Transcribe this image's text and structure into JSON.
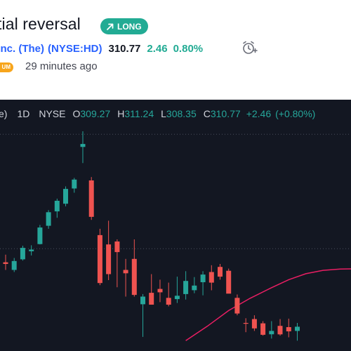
{
  "idea": {
    "title": "tial reversal",
    "badge": "LONG",
    "company": ", Inc. (The)",
    "ticker": "(NYSE:HD)",
    "price": "310.77",
    "change": "2.46",
    "change_pct": "0.80%",
    "pill_label": "UM",
    "time_ago": "29 minutes ago"
  },
  "chart_header": {
    "paren": "e)",
    "timeframe": "1D",
    "exchange": "NYSE",
    "open_label": "O",
    "open": "309.27",
    "high_label": "H",
    "high": "311.24",
    "low_label": "L",
    "low": "308.35",
    "close_label": "C",
    "close": "310.77",
    "change": "+2.46",
    "change_pct": "(+0.80%)"
  },
  "colors": {
    "up": "#26a69a",
    "down": "#ef5350",
    "moving_average": "#e91e63",
    "background": "#131722",
    "badge": "#22ab94",
    "link": "#2962ff"
  },
  "chart_data": {
    "type": "candlestick",
    "visible_price_range": [
      270.0,
      325.0
    ],
    "dotted_price_levels": [
      320.5,
      293.5
    ],
    "candles": [
      {
        "o": 290.3,
        "h": 292.1,
        "l": 288.5,
        "c": 289.9
      },
      {
        "o": 288.5,
        "h": 291.3,
        "l": 288.0,
        "c": 290.6
      },
      {
        "o": 291.0,
        "h": 294.2,
        "l": 290.7,
        "c": 293.7
      },
      {
        "o": 292.9,
        "h": 294.3,
        "l": 291.9,
        "c": 293.3
      },
      {
        "o": 294.6,
        "h": 299.1,
        "l": 294.5,
        "c": 298.5
      },
      {
        "o": 298.9,
        "h": 302.6,
        "l": 298.2,
        "c": 302.1
      },
      {
        "o": 302.3,
        "h": 305.3,
        "l": 300.8,
        "c": 304.8
      },
      {
        "o": 304.1,
        "h": 308.2,
        "l": 303.5,
        "c": 307.6
      },
      {
        "o": 307.7,
        "h": 310.2,
        "l": 306.7,
        "c": 309.8
      },
      {
        "o": 317.5,
        "h": 321.2,
        "l": 313.7,
        "c": 318.2
      },
      {
        "o": 309.6,
        "h": 310.4,
        "l": 300.3,
        "c": 301.0
      },
      {
        "o": 296.7,
        "h": 298.2,
        "l": 284.9,
        "c": 285.4
      },
      {
        "o": 294.5,
        "h": 300.1,
        "l": 286.1,
        "c": 287.5
      },
      {
        "o": 295.2,
        "h": 295.7,
        "l": 284.4,
        "c": 292.7
      },
      {
        "o": 288.5,
        "h": 291.1,
        "l": 282.2,
        "c": 287.7
      },
      {
        "o": 291.1,
        "h": 295.7,
        "l": 282.2,
        "c": 282.6
      },
      {
        "o": 280.4,
        "h": 282.8,
        "l": 272.7,
        "c": 282.2
      },
      {
        "o": 283.1,
        "h": 287.5,
        "l": 280.3,
        "c": 280.3
      },
      {
        "o": 284.0,
        "h": 286.2,
        "l": 280.9,
        "c": 283.2
      },
      {
        "o": 281.9,
        "h": 285.5,
        "l": 279.9,
        "c": 280.3
      },
      {
        "o": 281.6,
        "h": 286.9,
        "l": 280.7,
        "c": 282.4
      },
      {
        "o": 282.8,
        "h": 288.2,
        "l": 281.5,
        "c": 285.9
      },
      {
        "o": 283.7,
        "h": 286.8,
        "l": 283.0,
        "c": 284.8
      },
      {
        "o": 285.6,
        "h": 288.2,
        "l": 282.5,
        "c": 287.4
      },
      {
        "o": 288.0,
        "h": 289.6,
        "l": 283.7,
        "c": 285.5
      },
      {
        "o": 289.2,
        "h": 289.9,
        "l": 286.2,
        "c": 286.9
      },
      {
        "o": 288.3,
        "h": 288.8,
        "l": 283.1,
        "c": 282.9
      },
      {
        "o": 281.9,
        "h": 282.7,
        "l": 277.8,
        "c": 278.2
      },
      {
        "o": 276.0,
        "h": 277.1,
        "l": 273.8,
        "c": 275.8
      },
      {
        "o": 276.9,
        "h": 277.8,
        "l": 274.1,
        "c": 274.7
      },
      {
        "o": 275.9,
        "h": 276.4,
        "l": 273.0,
        "c": 273.2
      },
      {
        "o": 273.3,
        "h": 276.4,
        "l": 272.3,
        "c": 274.1
      },
      {
        "o": 275.3,
        "h": 276.9,
        "l": 273.0,
        "c": 273.3
      },
      {
        "o": 275.0,
        "h": 277.0,
        "l": 272.6,
        "c": 274.0
      },
      {
        "o": 274.1,
        "h": 276.0,
        "l": 271.8,
        "c": 275.1
      }
    ],
    "moving_average": [
      {
        "i": 21,
        "v": 271.8
      },
      {
        "i": 23.5,
        "v": 275.2
      },
      {
        "i": 26,
        "v": 278.9
      },
      {
        "i": 28.5,
        "v": 281.8
      },
      {
        "i": 31,
        "v": 284.3
      },
      {
        "i": 33,
        "v": 286.2
      },
      {
        "i": 35,
        "v": 287.6
      },
      {
        "i": 37,
        "v": 288.4
      },
      {
        "i": 39,
        "v": 288.7
      },
      {
        "i": 42,
        "v": 288.8
      },
      {
        "i": 45,
        "v": 289.0
      }
    ]
  }
}
